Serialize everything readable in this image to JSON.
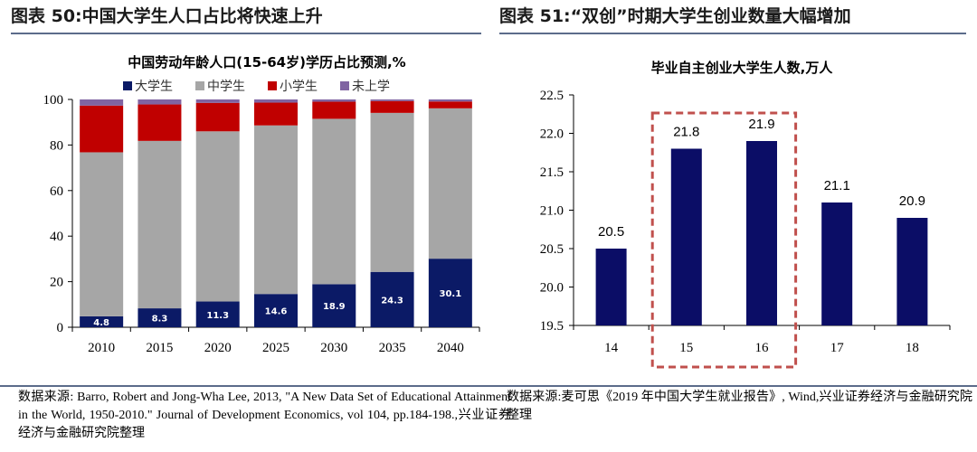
{
  "left_figure": {
    "header": "图表 50:中国大学生人口占比将快速上升",
    "chart_data": {
      "type": "bar",
      "stacked": true,
      "title": "中国劳动年龄人口(15-64岁)学历占比预测,%",
      "categories": [
        "2010",
        "2015",
        "2020",
        "2025",
        "2030",
        "2035",
        "2040"
      ],
      "series": [
        {
          "name": "大学生",
          "color": "#0b1a66",
          "values": [
            4.8,
            8.3,
            11.3,
            14.6,
            18.9,
            24.3,
            30.1
          ],
          "labels": [
            "4.8",
            "8.3",
            "11.3",
            "14.6",
            "18.9",
            "24.3",
            "30.1"
          ]
        },
        {
          "name": "中学生",
          "color": "#a6a6a6",
          "values": [
            72,
            73.5,
            74.7,
            74,
            72.6,
            69.8,
            66
          ]
        },
        {
          "name": "小学生",
          "color": "#c00000",
          "values": [
            20.5,
            16,
            12.5,
            10,
            7.5,
            5.2,
            3
          ]
        },
        {
          "name": "未上学",
          "color": "#8064a2",
          "values": [
            2.7,
            2.2,
            1.5,
            1.4,
            1.0,
            0.7,
            0.9
          ]
        }
      ],
      "ylim": [
        0,
        100
      ],
      "yticks": [
        "0",
        "20",
        "40",
        "60",
        "80",
        "100"
      ],
      "grid": false,
      "legend": "top"
    }
  },
  "right_figure": {
    "header": "图表 51:“双创”时期大学生创业数量大幅增加",
    "chart_data": {
      "type": "bar",
      "title": "毕业自主创业大学生人数,万人",
      "categories": [
        "14",
        "15",
        "16",
        "17",
        "18"
      ],
      "values": [
        20.5,
        21.8,
        21.9,
        21.1,
        20.9
      ],
      "value_labels": [
        "20.5",
        "21.8",
        "21.9",
        "21.1",
        "20.9"
      ],
      "color": "#0b0d66",
      "ylim": [
        19.5,
        22.5
      ],
      "yticks": [
        "19.5",
        "20.0",
        "20.5",
        "21.0",
        "21.5",
        "22.0",
        "22.5"
      ],
      "highlight": {
        "categories": [
          "15",
          "16"
        ],
        "style": "dashed",
        "color": "#c0504d"
      },
      "grid": false
    }
  },
  "sources": {
    "left": "数据来源: Barro, Robert and Jong-Wha Lee, 2013, \"A New Data Set of Educational Attainment in the World, 1950-2010.\" Journal of Development Economics, vol 104, pp.184-198.,兴业证券经济与金融研究院整理",
    "right": "数据来源:麦可思《2019 年中国大学生就业报告》, Wind,兴业证券经济与金融研究院整理"
  }
}
